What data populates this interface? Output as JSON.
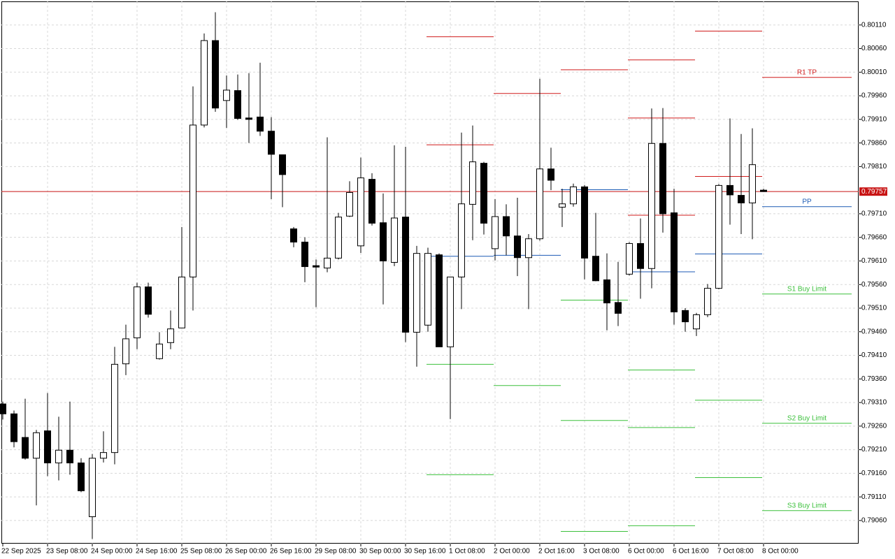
{
  "chart_data": {
    "type": "candlestick",
    "categories": [
      "22 Sep 2025",
      null,
      null,
      null,
      "23 Sep 08:00",
      null,
      null,
      null,
      "24 Sep 00:00",
      null,
      null,
      null,
      "24 Sep 16:00",
      null,
      null,
      null,
      "25 Sep 08:00",
      null,
      null,
      null,
      "26 Sep 00:00",
      null,
      null,
      null,
      "26 Sep 16:00",
      null,
      null,
      null,
      "29 Sep 08:00",
      null,
      null,
      null,
      "30 Sep 00:00",
      null,
      null,
      null,
      "30 Sep 16:00",
      null,
      null,
      null,
      "1 Oct 08:00",
      null,
      null,
      null,
      "2 Oct 00:00",
      null,
      null,
      null,
      "2 Oct 16:00",
      null,
      null,
      null,
      "3 Oct 08:00",
      null,
      null,
      null,
      "6 Oct 00:00",
      null,
      null,
      null,
      "6 Oct 16:00",
      null,
      null,
      null,
      "7 Oct 08:00",
      null,
      null,
      null,
      "8 Oct 00:00"
    ],
    "open": [
      0.79307,
      0.79286,
      0.79236,
      0.79192,
      0.7925,
      0.79182,
      0.79209,
      0.79182,
      0.79068,
      0.79192,
      0.79204,
      0.79392,
      0.79447,
      0.79555,
      0.79403,
      0.79437,
      0.79468,
      0.79576,
      0.79898,
      0.80077,
      0.7995,
      0.79971,
      0.79913,
      0.79915,
      0.79885,
      0.79835,
      0.79678,
      0.7965,
      0.796,
      0.79595,
      0.79616,
      0.79705,
      0.79642,
      0.79783,
      0.79691,
      0.79607,
      0.79703,
      0.79459,
      0.79474,
      0.79623,
      0.79428,
      0.79576,
      0.7973,
      0.79817,
      0.79636,
      0.79704,
      0.79663,
      0.79617,
      0.79657,
      0.79805,
      0.79724,
      0.79731,
      0.79767,
      0.7962,
      0.7957,
      0.79522,
      0.79582,
      0.79647,
      0.79594,
      0.79859,
      0.79712,
      0.79505,
      0.79466,
      0.79496,
      0.79552,
      0.7977,
      0.79749,
      0.79733,
      0.7976
    ],
    "high": [
      0.79312,
      0.79293,
      0.79318,
      0.79252,
      0.7933,
      0.7928,
      0.79312,
      0.79192,
      0.79201,
      0.79249,
      0.79428,
      0.79475,
      0.79564,
      0.79564,
      0.79459,
      0.79505,
      0.79682,
      0.7998,
      0.80092,
      0.80137,
      0.80003,
      0.80005,
      0.80008,
      0.8003,
      0.79915,
      0.79835,
      0.79682,
      0.7966,
      0.79613,
      0.79872,
      0.79712,
      0.79779,
      0.79829,
      0.79796,
      0.79753,
      0.79855,
      0.79852,
      0.79642,
      0.79638,
      0.79626,
      0.79576,
      0.79882,
      0.79897,
      0.7982,
      0.79741,
      0.7973,
      0.79744,
      0.79667,
      0.79996,
      0.7985,
      0.79763,
      0.79774,
      0.79771,
      0.79712,
      0.79626,
      0.79608,
      0.7965,
      0.797,
      0.79933,
      0.79934,
      0.79763,
      0.7951,
      0.795,
      0.79561,
      0.79773,
      0.79912,
      0.79879,
      0.79891,
      0.79763
    ],
    "low": [
      0.79274,
      0.79215,
      0.79189,
      0.79092,
      0.79154,
      0.79145,
      0.79157,
      0.7912,
      0.79021,
      0.79183,
      0.79179,
      0.79368,
      0.79423,
      0.7949,
      0.79401,
      0.79423,
      0.79468,
      0.79505,
      0.79893,
      0.79926,
      0.79892,
      0.79909,
      0.7986,
      0.79875,
      0.79741,
      0.79724,
      0.79639,
      0.79565,
      0.79512,
      0.79586,
      0.79613,
      0.79703,
      0.79627,
      0.79685,
      0.79518,
      0.79599,
      0.79438,
      0.79386,
      0.7946,
      0.79428,
      0.79275,
      0.79508,
      0.79654,
      0.79666,
      0.79611,
      0.79622,
      0.79578,
      0.79508,
      0.79653,
      0.7976,
      0.79682,
      0.79725,
      0.79571,
      0.79567,
      0.79463,
      0.79472,
      0.79579,
      0.7953,
      0.79552,
      0.7967,
      0.79475,
      0.7946,
      0.79451,
      0.79491,
      0.7955,
      0.79687,
      0.79667,
      0.79656,
      0.79757
    ],
    "close": [
      0.79286,
      0.79227,
      0.79192,
      0.79246,
      0.79182,
      0.79209,
      0.79182,
      0.79123,
      0.79192,
      0.79204,
      0.79391,
      0.79445,
      0.79555,
      0.79497,
      0.79434,
      0.79466,
      0.79576,
      0.79898,
      0.80077,
      0.79934,
      0.79972,
      0.79912,
      0.7991,
      0.79885,
      0.79836,
      0.79793,
      0.7965,
      0.79598,
      0.79597,
      0.79616,
      0.79703,
      0.79755,
      0.79786,
      0.7969,
      0.7961,
      0.79701,
      0.79459,
      0.79626,
      0.79626,
      0.79428,
      0.79576,
      0.79731,
      0.7982,
      0.7969,
      0.79704,
      0.79663,
      0.79617,
      0.79657,
      0.79805,
      0.79781,
      0.79731,
      0.79767,
      0.79616,
      0.79568,
      0.79521,
      0.79499,
      0.79647,
      0.79594,
      0.79859,
      0.7971,
      0.79502,
      0.79481,
      0.79496,
      0.79552,
      0.7977,
      0.7975,
      0.79733,
      0.79814,
      0.79757
    ],
    "up_color": "#ffffff",
    "down_color": "#000000",
    "ylim": [
      0.79011,
      0.8016
    ],
    "yticks": [
      {
        "value": 0.8011,
        "label": "0.80110"
      },
      {
        "value": 0.8006,
        "label": "0.80060"
      },
      {
        "value": 0.8001,
        "label": "0.80010"
      },
      {
        "value": 0.7996,
        "label": "0.79960"
      },
      {
        "value": 0.7991,
        "label": "0.79910"
      },
      {
        "value": 0.7986,
        "label": "0.79860"
      },
      {
        "value": 0.7981,
        "label": "0.79810"
      },
      {
        "value": 0.7971,
        "label": "0.79710"
      },
      {
        "value": 0.7966,
        "label": "0.79660"
      },
      {
        "value": 0.7961,
        "label": "0.79610"
      },
      {
        "value": 0.7956,
        "label": "0.79560"
      },
      {
        "value": 0.7951,
        "label": "0.79510"
      },
      {
        "value": 0.7946,
        "label": "0.79460"
      },
      {
        "value": 0.7941,
        "label": "0.79410"
      },
      {
        "value": 0.7936,
        "label": "0.79360"
      },
      {
        "value": 0.7931,
        "label": "0.79310"
      },
      {
        "value": 0.7926,
        "label": "0.79260"
      },
      {
        "value": 0.7921,
        "label": "0.79210"
      },
      {
        "value": 0.7916,
        "label": "0.79160"
      },
      {
        "value": 0.7911,
        "label": "0.79110"
      },
      {
        "value": 0.7906,
        "label": "0.79060"
      }
    ],
    "grid": true,
    "last_price": {
      "value": 0.79757,
      "label": "0.79757",
      "color": "#c81414"
    },
    "pivot_colors": {
      "resistance": "#d01c1c",
      "pivot": "#1c5ab4",
      "support": "#3cc03c"
    },
    "pivots": [
      {
        "resistance": [
          0.80085,
          0.79856
        ],
        "pivot": 0.7962,
        "support": [
          0.79391,
          0.79157
        ]
      },
      {
        "resistance": [
          0.79965
        ],
        "pivot": 0.79622,
        "support": [
          0.79346
        ]
      },
      {
        "resistance": [
          0.80015
        ],
        "pivot": 0.79761,
        "support": [
          0.79527,
          0.79272,
          0.79037
        ]
      },
      {
        "resistance": [
          0.80036,
          0.79913,
          0.79707
        ],
        "pivot": 0.79587,
        "support": [
          0.79379,
          0.79257,
          0.79049
        ]
      },
      {
        "resistance": [
          0.80097,
          0.79789
        ],
        "pivot": 0.79625,
        "support": [
          0.79315,
          0.79151
        ]
      }
    ],
    "levels": [
      {
        "label": "R1 TP",
        "value": 0.79999,
        "color": "#d01c1c"
      },
      {
        "label": "PP",
        "value": 0.79725,
        "color": "#1c5ab4"
      },
      {
        "label": "S1 Buy Limit",
        "value": 0.7954,
        "color": "#3cc03c"
      },
      {
        "label": "S2 Buy Limit",
        "value": 0.79266,
        "color": "#3cc03c"
      },
      {
        "label": "S3 Buy Limit",
        "value": 0.79081,
        "color": "#3cc03c"
      }
    ]
  }
}
